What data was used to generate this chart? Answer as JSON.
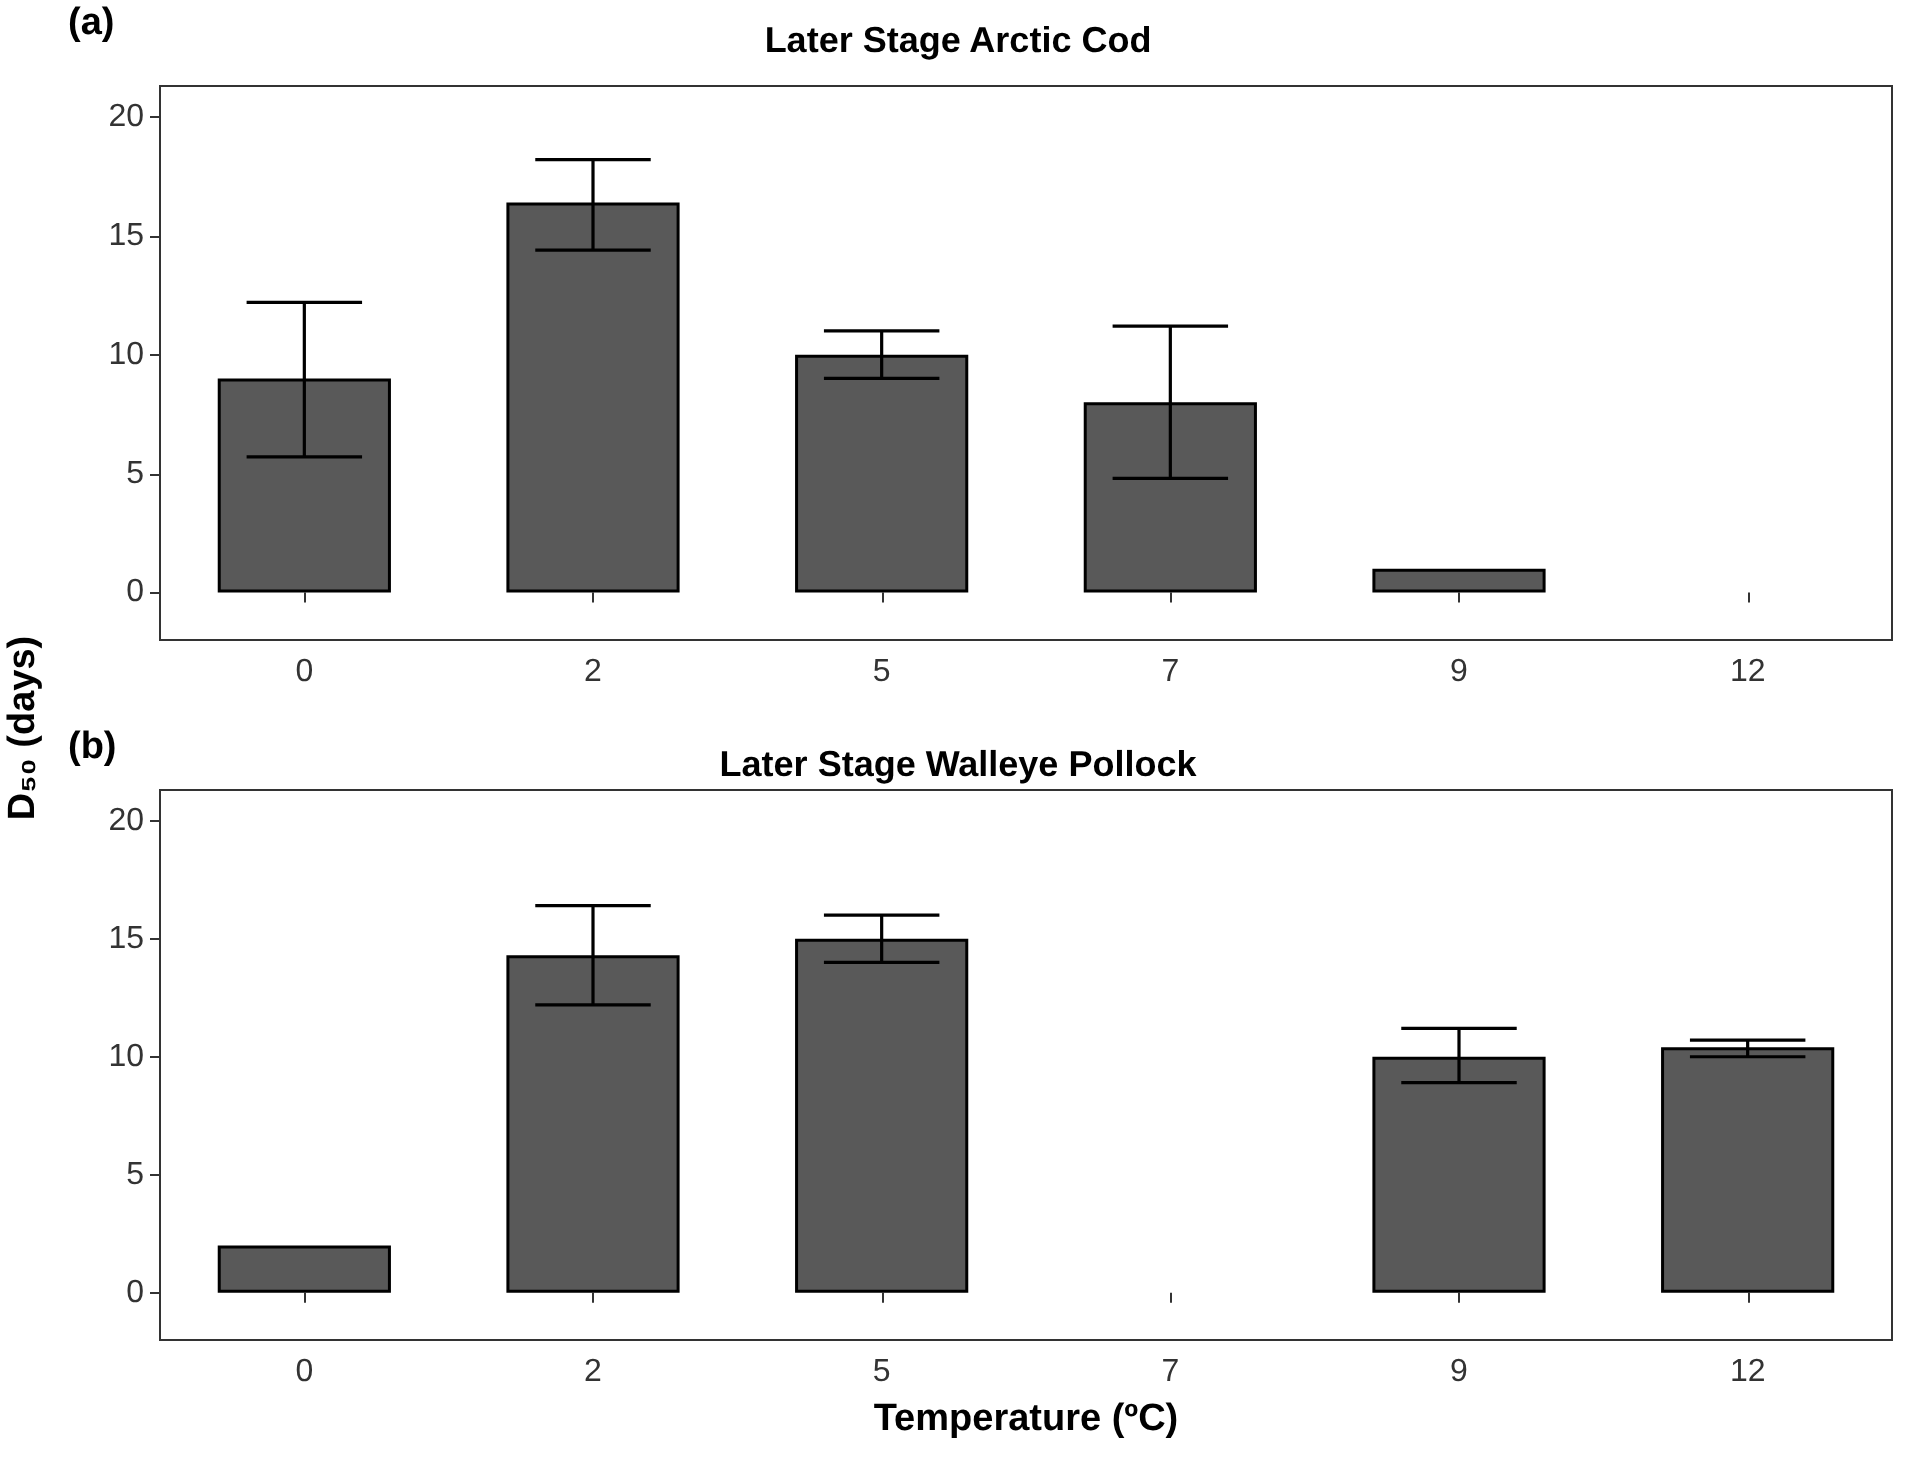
{
  "chart_data": [
    {
      "type": "bar",
      "title": "Later Stage Arctic Cod",
      "ylabel": "D₅₀ (days)",
      "annotations": [
        "(a)"
      ],
      "categories": [
        "0",
        "2",
        "5",
        "7",
        "9",
        "12"
      ],
      "values": [
        9.0,
        16.4,
        10.0,
        8.0,
        1.0,
        null
      ],
      "errors": [
        [
          5.7,
          12.2
        ],
        [
          14.4,
          18.2
        ],
        [
          9.0,
          11.0
        ],
        [
          4.8,
          11.2
        ],
        null,
        null
      ],
      "color": "#595959",
      "ylim": [
        -2,
        21.3
      ],
      "yticks": [
        0,
        5,
        10,
        15,
        20
      ],
      "grid": false
    },
    {
      "type": "bar",
      "title": "Later Stage Walleye Pollock",
      "xlabel": "Temperature (ºC)",
      "annotations": [
        "(b)"
      ],
      "categories": [
        "0",
        "2",
        "5",
        "7",
        "9",
        "12"
      ],
      "values": [
        2.0,
        14.3,
        15.0,
        null,
        10.0,
        10.4
      ],
      "errors": [
        null,
        [
          12.2,
          16.4
        ],
        [
          14.0,
          16.0
        ],
        null,
        [
          8.9,
          11.2
        ],
        [
          10.0,
          10.7
        ]
      ],
      "color": "#595959",
      "ylim": [
        -2,
        21.3
      ],
      "yticks": [
        0,
        5,
        10,
        15,
        20
      ],
      "grid": false
    }
  ]
}
